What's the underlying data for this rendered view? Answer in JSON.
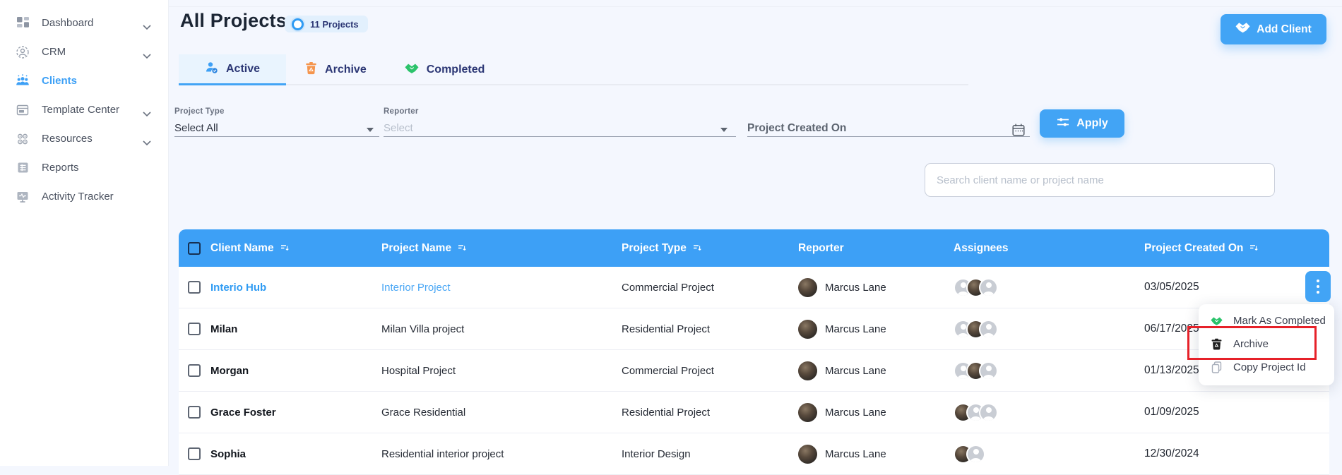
{
  "sidebar": {
    "items": [
      {
        "label": "Dashboard",
        "icon": "dashboard-grid-icon",
        "expandable": true,
        "active": false
      },
      {
        "label": "CRM",
        "icon": "crm-icon",
        "expandable": true,
        "active": false
      },
      {
        "label": "Clients",
        "icon": "clients-people-icon",
        "expandable": false,
        "active": true
      },
      {
        "label": "Template Center",
        "icon": "template-center-icon",
        "expandable": true,
        "active": false
      },
      {
        "label": "Resources",
        "icon": "resources-icon",
        "expandable": true,
        "active": false
      },
      {
        "label": "Reports",
        "icon": "reports-icon",
        "expandable": false,
        "active": false
      },
      {
        "label": "Activity Tracker",
        "icon": "activity-tracker-icon",
        "expandable": false,
        "active": false
      }
    ]
  },
  "header": {
    "title": "All Projects",
    "project_count_badge": "11 Projects",
    "badge_icon": "ring-icon",
    "add_client_button": "Add Client",
    "add_client_icon": "handshake-icon"
  },
  "tabs": [
    {
      "label": "Active",
      "icon": "active-user-check-icon",
      "active": true
    },
    {
      "label": "Archive",
      "icon": "archive-trash-icon",
      "active": false
    },
    {
      "label": "Completed",
      "icon": "completed-handshake-icon",
      "active": false
    }
  ],
  "filters": {
    "project_type_label": "Project Type",
    "project_type_value": "Select All",
    "reporter_label": "Reporter",
    "reporter_placeholder": "Select",
    "created_on_placeholder": "Project Created On",
    "calendar_icon": "calendar-icon",
    "apply_button": "Apply",
    "apply_icon": "sliders-icon",
    "search_placeholder": "Search client name or project name"
  },
  "table": {
    "columns": [
      {
        "label": "Client Name",
        "sortable": true
      },
      {
        "label": "Project Name",
        "sortable": true
      },
      {
        "label": "Project Type",
        "sortable": true
      },
      {
        "label": "Reporter",
        "sortable": false
      },
      {
        "label": "Assignees",
        "sortable": false
      },
      {
        "label": "Project Created On",
        "sortable": true
      }
    ],
    "rows": [
      {
        "client": "Interio Hub",
        "project": "Interior Project",
        "type": "Commercial Project",
        "reporter": "Marcus Lane",
        "date": "03/05/2025",
        "assignees": [
          "placeholder",
          "photo",
          "placeholder"
        ],
        "highlighted": true
      },
      {
        "client": "Milan",
        "project": "Milan Villa project",
        "type": "Residential Project",
        "reporter": "Marcus Lane",
        "date": "06/17/2025",
        "assignees": [
          "placeholder",
          "photo",
          "placeholder"
        ],
        "highlighted": false
      },
      {
        "client": "Morgan",
        "project": "Hospital Project",
        "type": "Commercial Project",
        "reporter": "Marcus Lane",
        "date": "01/13/2025",
        "assignees": [
          "placeholder",
          "photo",
          "placeholder"
        ],
        "highlighted": false
      },
      {
        "client": "Grace Foster",
        "project": "Grace Residential",
        "type": "Residential Project",
        "reporter": "Marcus Lane",
        "date": "01/09/2025",
        "assignees": [
          "photo",
          "placeholder",
          "placeholder"
        ],
        "highlighted": false
      },
      {
        "client": "Sophia",
        "project": "Residential interior project",
        "type": "Interior Design",
        "reporter": "Marcus Lane",
        "date": "12/30/2024",
        "assignees": [
          "photo",
          "placeholder"
        ],
        "highlighted": false
      }
    ]
  },
  "context_menu": {
    "items": [
      {
        "label": "Mark As Completed",
        "icon": "completed-handshake-icon",
        "annotated": false
      },
      {
        "label": "Archive",
        "icon": "trash-icon",
        "annotated": true
      },
      {
        "label": "Copy Project Id",
        "icon": "copy-icon",
        "annotated": false
      }
    ]
  },
  "colors": {
    "primary_blue": "#3da0f6",
    "navy_text": "#2b3674",
    "page_background": "#f4f7fe",
    "active_tab_background": "#e9f4fe",
    "archive_orange": "#f5954d",
    "completed_green": "#2bc36b",
    "annotation_red": "#e62129"
  }
}
